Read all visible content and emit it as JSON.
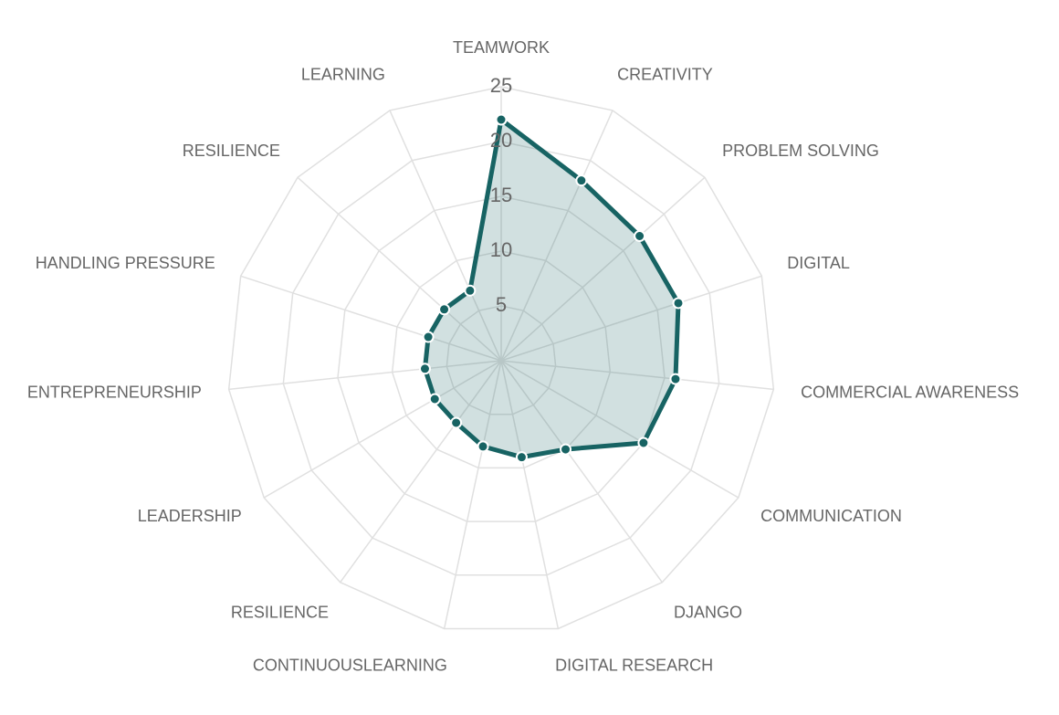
{
  "chart_data": {
    "type": "radar",
    "categories": [
      "TEAMWORK",
      "CREATIVITY",
      "PROBLEM SOLVING",
      "DIGITAL",
      "COMMERCIAL AWARENESS",
      "COMMUNICATION",
      "DJANGO",
      "DIGITAL RESEARCH",
      "CONTINUOUSLEARNING",
      "RESILIENCE",
      "LEADERSHIP",
      "ENTREPRENEURSHIP",
      "HANDLING PRESSURE",
      "RESILIENCE",
      "LEARNING"
    ],
    "values": [
      22,
      18,
      17,
      17,
      16,
      15,
      10,
      9,
      8,
      7,
      7,
      7,
      7,
      7,
      7
    ],
    "color": "#176363",
    "ylim": [
      0,
      25
    ],
    "yticks": [
      5,
      10,
      15,
      20,
      25
    ],
    "grid": true
  }
}
